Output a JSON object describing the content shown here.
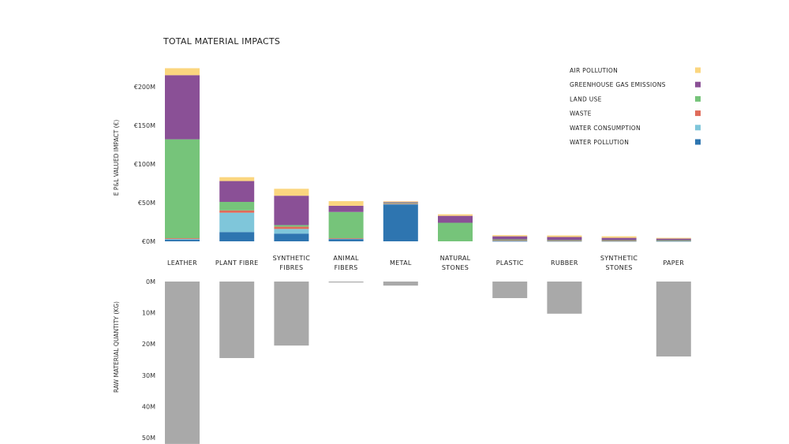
{
  "chart_data": [
    {
      "type": "bar",
      "stacked": true,
      "title": "TOTAL MATERIAL IMPACTS",
      "ylabel": "E P&L VALUED IMPACT (€)",
      "ylim": [
        0,
        225
      ],
      "yticks": [
        "€0M",
        "€50M",
        "€100M",
        "€150M",
        "€200M"
      ],
      "ytick_values": [
        0,
        50,
        100,
        150,
        200
      ],
      "categories": [
        [
          "LEATHER"
        ],
        [
          "PLANT FIBRE"
        ],
        [
          "SYNTHETIC",
          "FIBRES"
        ],
        [
          "ANIMAL",
          "FIBERS"
        ],
        [
          "METAL"
        ],
        [
          "NATURAL",
          "STONES"
        ],
        [
          "PLASTIC"
        ],
        [
          "RUBBER"
        ],
        [
          "SYNTHETIC",
          "STONES"
        ],
        [
          "PAPER"
        ]
      ],
      "legend_position": "top-right",
      "series": [
        {
          "name": "WATER POLLUTION",
          "color": "#2e75b0",
          "values": [
            2,
            12,
            10,
            3,
            48,
            0,
            0.5,
            0.5,
            0.5,
            0.5
          ]
        },
        {
          "name": "WATER CONSUMPTION",
          "color": "#7fc6da",
          "values": [
            1,
            25,
            6,
            0.5,
            0.3,
            0,
            0.5,
            0.3,
            0.3,
            0.5
          ]
        },
        {
          "name": "WASTE",
          "color": "#e06b5a",
          "values": [
            1,
            3,
            3,
            0.5,
            1,
            0,
            0.5,
            0.3,
            0.2,
            0.2
          ]
        },
        {
          "name": "LAND USE",
          "color": "#76c47a",
          "values": [
            128,
            11,
            2,
            34,
            0.5,
            24,
            1,
            0.5,
            0.5,
            0.3
          ]
        },
        {
          "name": "GREENHOUSE GAS EMISSIONS",
          "color": "#8a5096",
          "values": [
            83,
            27,
            38,
            8,
            1,
            9,
            4,
            4,
            3,
            2
          ]
        },
        {
          "name": "AIR POLLUTION",
          "color": "#fbd67f",
          "values": [
            9,
            5,
            9,
            6,
            1,
            2,
            1.5,
            2,
            2,
            1
          ]
        }
      ]
    },
    {
      "type": "bar",
      "ylabel": "RAW MATERIAL QUANTITY (KG)",
      "ylim": [
        0,
        52
      ],
      "yticks": [
        "0M",
        "10M",
        "20M",
        "30M",
        "40M",
        "50M"
      ],
      "ytick_values": [
        0,
        10,
        20,
        30,
        40,
        50
      ],
      "color": "#a9a9a9",
      "values": [
        52,
        24.5,
        20.5,
        0.3,
        1.3,
        0,
        5.3,
        10.3,
        0,
        24
      ]
    }
  ]
}
